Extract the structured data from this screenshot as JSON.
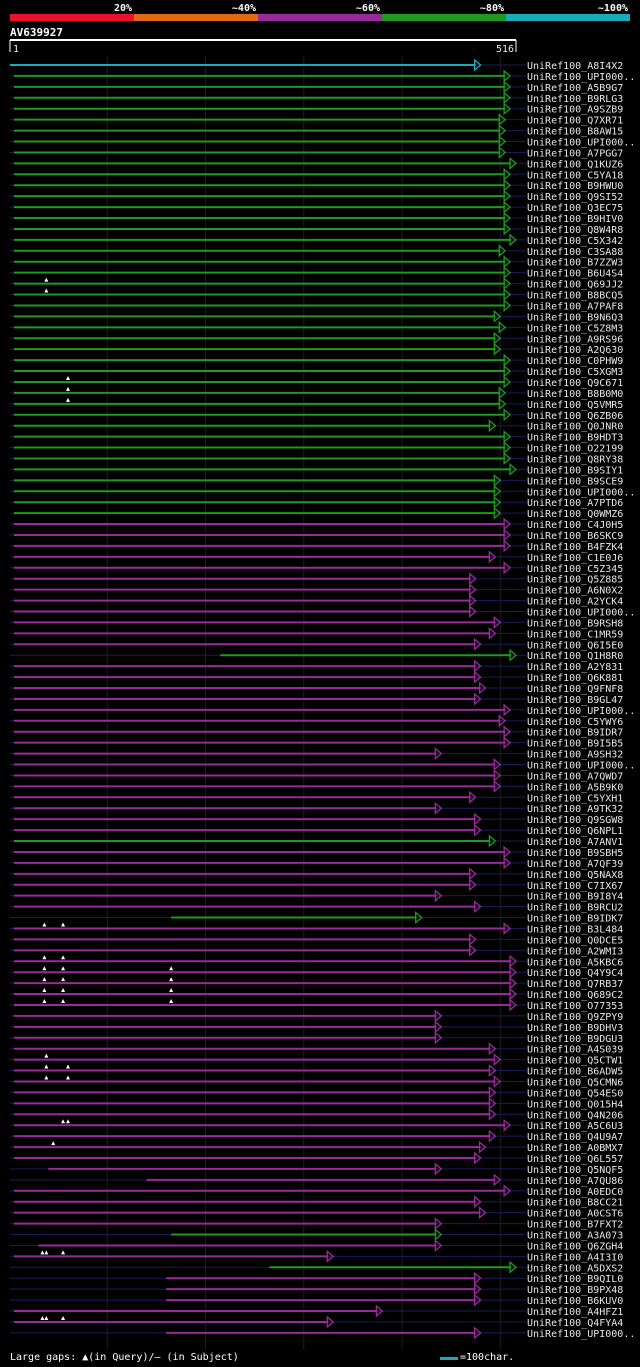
{
  "query": {
    "name": "AV639927",
    "start": "1",
    "end": "516",
    "length": 516
  },
  "identity_scale": [
    {
      "label": "20%",
      "color": "#e8122a"
    },
    {
      "label": "~40%",
      "color": "#e06a12"
    },
    {
      "label": "~60%",
      "color": "#9a2a9a"
    },
    {
      "label": "~80%",
      "color": "#1e9a1e"
    },
    {
      "label": "~100%",
      "color": "#1aaab8"
    }
  ],
  "footer": {
    "gaps_text": "Large gaps: ▲(in Query)/— (in Subject)",
    "scale_text": "=100char."
  },
  "chart_data": {
    "type": "table",
    "title": "AV639927",
    "xlim": [
      1,
      516
    ],
    "rows": [
      {
        "label": "UniRef100_A8I4X2",
        "start": 1,
        "end": 480,
        "group": "~100%",
        "query_gaps": []
      },
      {
        "label": "UniRef100_UPI000..",
        "start": 5,
        "end": 510,
        "group": "~80%",
        "query_gaps": []
      },
      {
        "label": "UniRef100_A5B9G7",
        "start": 5,
        "end": 510,
        "group": "~80%",
        "query_gaps": []
      },
      {
        "label": "UniRef100_B9RLG3",
        "start": 5,
        "end": 510,
        "group": "~80%",
        "query_gaps": []
      },
      {
        "label": "UniRef100_A9SZB9",
        "start": 5,
        "end": 510,
        "group": "~80%",
        "query_gaps": []
      },
      {
        "label": "UniRef100_Q7XR71",
        "start": 5,
        "end": 505,
        "group": "~80%",
        "query_gaps": []
      },
      {
        "label": "UniRef100_B8AW15",
        "start": 5,
        "end": 505,
        "group": "~80%",
        "query_gaps": []
      },
      {
        "label": "UniRef100_UPI000..",
        "start": 5,
        "end": 505,
        "group": "~80%",
        "query_gaps": []
      },
      {
        "label": "UniRef100_A7PGG7",
        "start": 5,
        "end": 505,
        "group": "~80%",
        "query_gaps": []
      },
      {
        "label": "UniRef100_Q1KUZ6",
        "start": 5,
        "end": 516,
        "group": "~80%",
        "query_gaps": []
      },
      {
        "label": "UniRef100_C5YA18",
        "start": 5,
        "end": 510,
        "group": "~80%",
        "query_gaps": []
      },
      {
        "label": "UniRef100_B9HWU0",
        "start": 5,
        "end": 510,
        "group": "~80%",
        "query_gaps": []
      },
      {
        "label": "UniRef100_Q9SI52",
        "start": 5,
        "end": 510,
        "group": "~80%",
        "query_gaps": []
      },
      {
        "label": "UniRef100_Q3EC75",
        "start": 5,
        "end": 510,
        "group": "~80%",
        "query_gaps": []
      },
      {
        "label": "UniRef100_B9HIV0",
        "start": 5,
        "end": 510,
        "group": "~80%",
        "query_gaps": []
      },
      {
        "label": "UniRef100_Q8W4R8",
        "start": 5,
        "end": 510,
        "group": "~80%",
        "query_gaps": []
      },
      {
        "label": "UniRef100_C5X342",
        "start": 5,
        "end": 516,
        "group": "~80%",
        "query_gaps": []
      },
      {
        "label": "UniRef100_C3SA88",
        "start": 5,
        "end": 505,
        "group": "~80%",
        "query_gaps": []
      },
      {
        "label": "UniRef100_B7ZZW3",
        "start": 5,
        "end": 510,
        "group": "~80%",
        "query_gaps": []
      },
      {
        "label": "UniRef100_B6U4S4",
        "start": 5,
        "end": 510,
        "group": "~80%",
        "query_gaps": []
      },
      {
        "label": "UniRef100_Q69JJ2",
        "start": 5,
        "end": 510,
        "group": "~80%",
        "query_gaps": [
          38
        ]
      },
      {
        "label": "UniRef100_B8BCQ5",
        "start": 5,
        "end": 510,
        "group": "~80%",
        "query_gaps": [
          38
        ]
      },
      {
        "label": "UniRef100_A7PAF8",
        "start": 5,
        "end": 510,
        "group": "~80%",
        "query_gaps": []
      },
      {
        "label": "UniRef100_B9N6Q3",
        "start": 5,
        "end": 500,
        "group": "~80%",
        "query_gaps": []
      },
      {
        "label": "UniRef100_C5Z8M3",
        "start": 5,
        "end": 505,
        "group": "~80%",
        "query_gaps": []
      },
      {
        "label": "UniRef100_A9RS96",
        "start": 5,
        "end": 500,
        "group": "~80%",
        "query_gaps": []
      },
      {
        "label": "UniRef100_A2Q630",
        "start": 5,
        "end": 500,
        "group": "~80%",
        "query_gaps": []
      },
      {
        "label": "UniRef100_C0PHW9",
        "start": 5,
        "end": 510,
        "group": "~80%",
        "query_gaps": []
      },
      {
        "label": "UniRef100_C5XGM3",
        "start": 5,
        "end": 510,
        "group": "~80%",
        "query_gaps": []
      },
      {
        "label": "UniRef100_Q9C671",
        "start": 5,
        "end": 510,
        "group": "~80%",
        "query_gaps": [
          60
        ]
      },
      {
        "label": "UniRef100_B8B0M0",
        "start": 5,
        "end": 505,
        "group": "~80%",
        "query_gaps": [
          60
        ]
      },
      {
        "label": "UniRef100_Q5VMR5",
        "start": 5,
        "end": 505,
        "group": "~80%",
        "query_gaps": [
          60
        ]
      },
      {
        "label": "UniRef100_Q6ZB06",
        "start": 5,
        "end": 510,
        "group": "~80%",
        "query_gaps": []
      },
      {
        "label": "UniRef100_Q0JNR0",
        "start": 5,
        "end": 495,
        "group": "~80%",
        "query_gaps": []
      },
      {
        "label": "UniRef100_B9HDT3",
        "start": 5,
        "end": 510,
        "group": "~80%",
        "query_gaps": []
      },
      {
        "label": "UniRef100_O22199",
        "start": 5,
        "end": 510,
        "group": "~80%",
        "query_gaps": []
      },
      {
        "label": "UniRef100_Q8RY38",
        "start": 5,
        "end": 510,
        "group": "~80%",
        "query_gaps": []
      },
      {
        "label": "UniRef100_B9SIY1",
        "start": 5,
        "end": 516,
        "group": "~80%",
        "query_gaps": []
      },
      {
        "label": "UniRef100_B9SCE9",
        "start": 5,
        "end": 500,
        "group": "~80%",
        "query_gaps": []
      },
      {
        "label": "UniRef100_UPI000..",
        "start": 5,
        "end": 500,
        "group": "~80%",
        "query_gaps": []
      },
      {
        "label": "UniRef100_A7PTD6",
        "start": 5,
        "end": 500,
        "group": "~80%",
        "query_gaps": []
      },
      {
        "label": "UniRef100_Q0WMZ6",
        "start": 5,
        "end": 500,
        "group": "~80%",
        "query_gaps": []
      },
      {
        "label": "UniRef100_C4J0H5",
        "start": 5,
        "end": 510,
        "group": "~60%",
        "query_gaps": []
      },
      {
        "label": "UniRef100_B6SKC9",
        "start": 5,
        "end": 510,
        "group": "~60%",
        "query_gaps": []
      },
      {
        "label": "UniRef100_B4FZK4",
        "start": 5,
        "end": 510,
        "group": "~60%",
        "query_gaps": []
      },
      {
        "label": "UniRef100_C1E0J6",
        "start": 5,
        "end": 495,
        "group": "~60%",
        "query_gaps": []
      },
      {
        "label": "UniRef100_C5Z345",
        "start": 5,
        "end": 510,
        "group": "~60%",
        "query_gaps": []
      },
      {
        "label": "UniRef100_Q5Z885",
        "start": 5,
        "end": 475,
        "group": "~60%",
        "query_gaps": []
      },
      {
        "label": "UniRef100_A6N0X2",
        "start": 5,
        "end": 475,
        "group": "~60%",
        "query_gaps": []
      },
      {
        "label": "UniRef100_A2YCK4",
        "start": 5,
        "end": 475,
        "group": "~60%",
        "query_gaps": []
      },
      {
        "label": "UniRef100_UPI000..",
        "start": 5,
        "end": 475,
        "group": "~60%",
        "query_gaps": []
      },
      {
        "label": "UniRef100_B9RSH8",
        "start": 5,
        "end": 500,
        "group": "~60%",
        "query_gaps": []
      },
      {
        "label": "UniRef100_C1MR59",
        "start": 5,
        "end": 495,
        "group": "~60%",
        "query_gaps": []
      },
      {
        "label": "UniRef100_Q6I5E0",
        "start": 5,
        "end": 480,
        "group": "~60%",
        "query_gaps": []
      },
      {
        "label": "UniRef100_Q1H8R0",
        "start": 215,
        "end": 516,
        "group": "~80%",
        "query_gaps": []
      },
      {
        "label": "UniRef100_A2Y831",
        "start": 5,
        "end": 480,
        "group": "~60%",
        "query_gaps": []
      },
      {
        "label": "UniRef100_Q6K881",
        "start": 5,
        "end": 480,
        "group": "~60%",
        "query_gaps": []
      },
      {
        "label": "UniRef100_Q9FNF8",
        "start": 5,
        "end": 485,
        "group": "~60%",
        "query_gaps": []
      },
      {
        "label": "UniRef100_B9GL47",
        "start": 5,
        "end": 480,
        "group": "~60%",
        "query_gaps": []
      },
      {
        "label": "UniRef100_UPI000..",
        "start": 5,
        "end": 510,
        "group": "~60%",
        "query_gaps": []
      },
      {
        "label": "UniRef100_C5YWY6",
        "start": 5,
        "end": 505,
        "group": "~60%",
        "query_gaps": []
      },
      {
        "label": "UniRef100_B9IDR7",
        "start": 5,
        "end": 510,
        "group": "~60%",
        "query_gaps": []
      },
      {
        "label": "UniRef100_B9I5B5",
        "start": 5,
        "end": 510,
        "group": "~60%",
        "query_gaps": []
      },
      {
        "label": "UniRef100_A9SH32",
        "start": 5,
        "end": 440,
        "group": "~60%",
        "query_gaps": []
      },
      {
        "label": "UniRef100_UPI000..",
        "start": 5,
        "end": 500,
        "group": "~60%",
        "query_gaps": []
      },
      {
        "label": "UniRef100_A7QWD7",
        "start": 5,
        "end": 500,
        "group": "~60%",
        "query_gaps": []
      },
      {
        "label": "UniRef100_A5B9K0",
        "start": 5,
        "end": 500,
        "group": "~60%",
        "query_gaps": []
      },
      {
        "label": "UniRef100_C5YXH1",
        "start": 5,
        "end": 475,
        "group": "~60%",
        "query_gaps": []
      },
      {
        "label": "UniRef100_A9TK32",
        "start": 5,
        "end": 440,
        "group": "~60%",
        "query_gaps": []
      },
      {
        "label": "UniRef100_Q9SGW8",
        "start": 5,
        "end": 480,
        "group": "~60%",
        "query_gaps": []
      },
      {
        "label": "UniRef100_Q6NPL1",
        "start": 5,
        "end": 480,
        "group": "~60%",
        "query_gaps": []
      },
      {
        "label": "UniRef100_A7ANV1",
        "start": 5,
        "end": 495,
        "group": "~80%",
        "query_gaps": []
      },
      {
        "label": "UniRef100_B9SBH5",
        "start": 5,
        "end": 510,
        "group": "~60%",
        "query_gaps": []
      },
      {
        "label": "UniRef100_A7QF39",
        "start": 5,
        "end": 510,
        "group": "~60%",
        "query_gaps": []
      },
      {
        "label": "UniRef100_Q5NAX8",
        "start": 5,
        "end": 475,
        "group": "~60%",
        "query_gaps": []
      },
      {
        "label": "UniRef100_C7IX67",
        "start": 5,
        "end": 475,
        "group": "~60%",
        "query_gaps": []
      },
      {
        "label": "UniRef100_B9I8Y4",
        "start": 5,
        "end": 440,
        "group": "~60%",
        "query_gaps": []
      },
      {
        "label": "UniRef100_B9RCU2",
        "start": 5,
        "end": 480,
        "group": "~60%",
        "query_gaps": []
      },
      {
        "label": "UniRef100_B9IDK7",
        "start": 165,
        "end": 420,
        "group": "~80%",
        "query_gaps": []
      },
      {
        "label": "UniRef100_B3L484",
        "start": 5,
        "end": 510,
        "group": "~60%",
        "query_gaps": [
          36,
          55
        ]
      },
      {
        "label": "UniRef100_Q0DCE5",
        "start": 5,
        "end": 475,
        "group": "~60%",
        "query_gaps": []
      },
      {
        "label": "UniRef100_A2WMI3",
        "start": 5,
        "end": 475,
        "group": "~60%",
        "query_gaps": []
      },
      {
        "label": "UniRef100_A5KBC6",
        "start": 5,
        "end": 516,
        "group": "~60%",
        "query_gaps": [
          36,
          55
        ]
      },
      {
        "label": "UniRef100_Q4Y9C4",
        "start": 5,
        "end": 516,
        "group": "~60%",
        "query_gaps": [
          36,
          55,
          165
        ]
      },
      {
        "label": "UniRef100_Q7RB37",
        "start": 5,
        "end": 516,
        "group": "~60%",
        "query_gaps": [
          36,
          55,
          165
        ]
      },
      {
        "label": "UniRef100_Q689C2",
        "start": 5,
        "end": 516,
        "group": "~60%",
        "query_gaps": [
          36,
          55,
          165
        ]
      },
      {
        "label": "UniRef100_O77353",
        "start": 5,
        "end": 516,
        "group": "~60%",
        "query_gaps": [
          36,
          55,
          165
        ]
      },
      {
        "label": "UniRef100_Q9ZPY9",
        "start": 5,
        "end": 440,
        "group": "~60%",
        "query_gaps": []
      },
      {
        "label": "UniRef100_B9DHV3",
        "start": 5,
        "end": 440,
        "group": "~60%",
        "query_gaps": []
      },
      {
        "label": "UniRef100_B9DGU3",
        "start": 5,
        "end": 440,
        "group": "~60%",
        "query_gaps": []
      },
      {
        "label": "UniRef100_A4S039",
        "start": 5,
        "end": 495,
        "group": "~60%",
        "query_gaps": []
      },
      {
        "label": "UniRef100_Q5CTW1",
        "start": 5,
        "end": 500,
        "group": "~60%",
        "query_gaps": [
          38
        ]
      },
      {
        "label": "UniRef100_B6ADW5",
        "start": 5,
        "end": 495,
        "group": "~60%",
        "query_gaps": [
          38,
          60
        ]
      },
      {
        "label": "UniRef100_Q5CMN6",
        "start": 5,
        "end": 500,
        "group": "~60%",
        "query_gaps": [
          38,
          60
        ]
      },
      {
        "label": "UniRef100_Q54ES0",
        "start": 5,
        "end": 495,
        "group": "~60%",
        "query_gaps": []
      },
      {
        "label": "UniRef100_Q015H4",
        "start": 5,
        "end": 495,
        "group": "~60%",
        "query_gaps": []
      },
      {
        "label": "UniRef100_Q4N206",
        "start": 5,
        "end": 495,
        "group": "~60%",
        "query_gaps": []
      },
      {
        "label": "UniRef100_A5C6U3",
        "start": 5,
        "end": 510,
        "group": "~60%",
        "query_gaps": [
          55,
          60
        ]
      },
      {
        "label": "UniRef100_Q4U9A7",
        "start": 5,
        "end": 495,
        "group": "~60%",
        "query_gaps": []
      },
      {
        "label": "UniRef100_A0BMX7",
        "start": 5,
        "end": 485,
        "group": "~60%",
        "query_gaps": [
          45
        ]
      },
      {
        "label": "UniRef100_Q6L557",
        "start": 5,
        "end": 480,
        "group": "~60%",
        "query_gaps": []
      },
      {
        "label": "UniRef100_Q5NQF5",
        "start": 40,
        "end": 440,
        "group": "~60%",
        "query_gaps": []
      },
      {
        "label": "UniRef100_A7QU86",
        "start": 140,
        "end": 500,
        "group": "~60%",
        "query_gaps": []
      },
      {
        "label": "UniRef100_A0EDC0",
        "start": 5,
        "end": 510,
        "group": "~60%",
        "query_gaps": []
      },
      {
        "label": "UniRef100_B8CC21",
        "start": 5,
        "end": 480,
        "group": "~60%",
        "query_gaps": []
      },
      {
        "label": "UniRef100_A0CST6",
        "start": 5,
        "end": 485,
        "group": "~60%",
        "query_gaps": []
      },
      {
        "label": "UniRef100_B7FXT2",
        "start": 5,
        "end": 440,
        "group": "~60%",
        "query_gaps": []
      },
      {
        "label": "UniRef100_A3A073",
        "start": 165,
        "end": 440,
        "group": "~80%",
        "query_gaps": []
      },
      {
        "label": "UniRef100_Q6ZGH4",
        "start": 30,
        "end": 440,
        "group": "~60%",
        "query_gaps": []
      },
      {
        "label": "UniRef100_A4I3I0",
        "start": 5,
        "end": 330,
        "group": "~60%",
        "query_gaps": [
          34,
          38,
          55
        ]
      },
      {
        "label": "UniRef100_A5DXS2",
        "start": 265,
        "end": 516,
        "group": "~80%",
        "query_gaps": []
      },
      {
        "label": "UniRef100_B9QIL0",
        "start": 160,
        "end": 480,
        "group": "~60%",
        "query_gaps": []
      },
      {
        "label": "UniRef100_B9PX48",
        "start": 160,
        "end": 480,
        "group": "~60%",
        "query_gaps": []
      },
      {
        "label": "UniRef100_B6KUV0",
        "start": 160,
        "end": 480,
        "group": "~60%",
        "query_gaps": []
      },
      {
        "label": "UniRef100_A4HFZ1",
        "start": 5,
        "end": 380,
        "group": "~60%",
        "query_gaps": []
      },
      {
        "label": "UniRef100_Q4FYA4",
        "start": 5,
        "end": 330,
        "group": "~60%",
        "query_gaps": [
          34,
          38,
          55
        ]
      },
      {
        "label": "UniRef100_UPI000..",
        "start": 160,
        "end": 480,
        "group": "~60%",
        "query_gaps": []
      }
    ]
  }
}
